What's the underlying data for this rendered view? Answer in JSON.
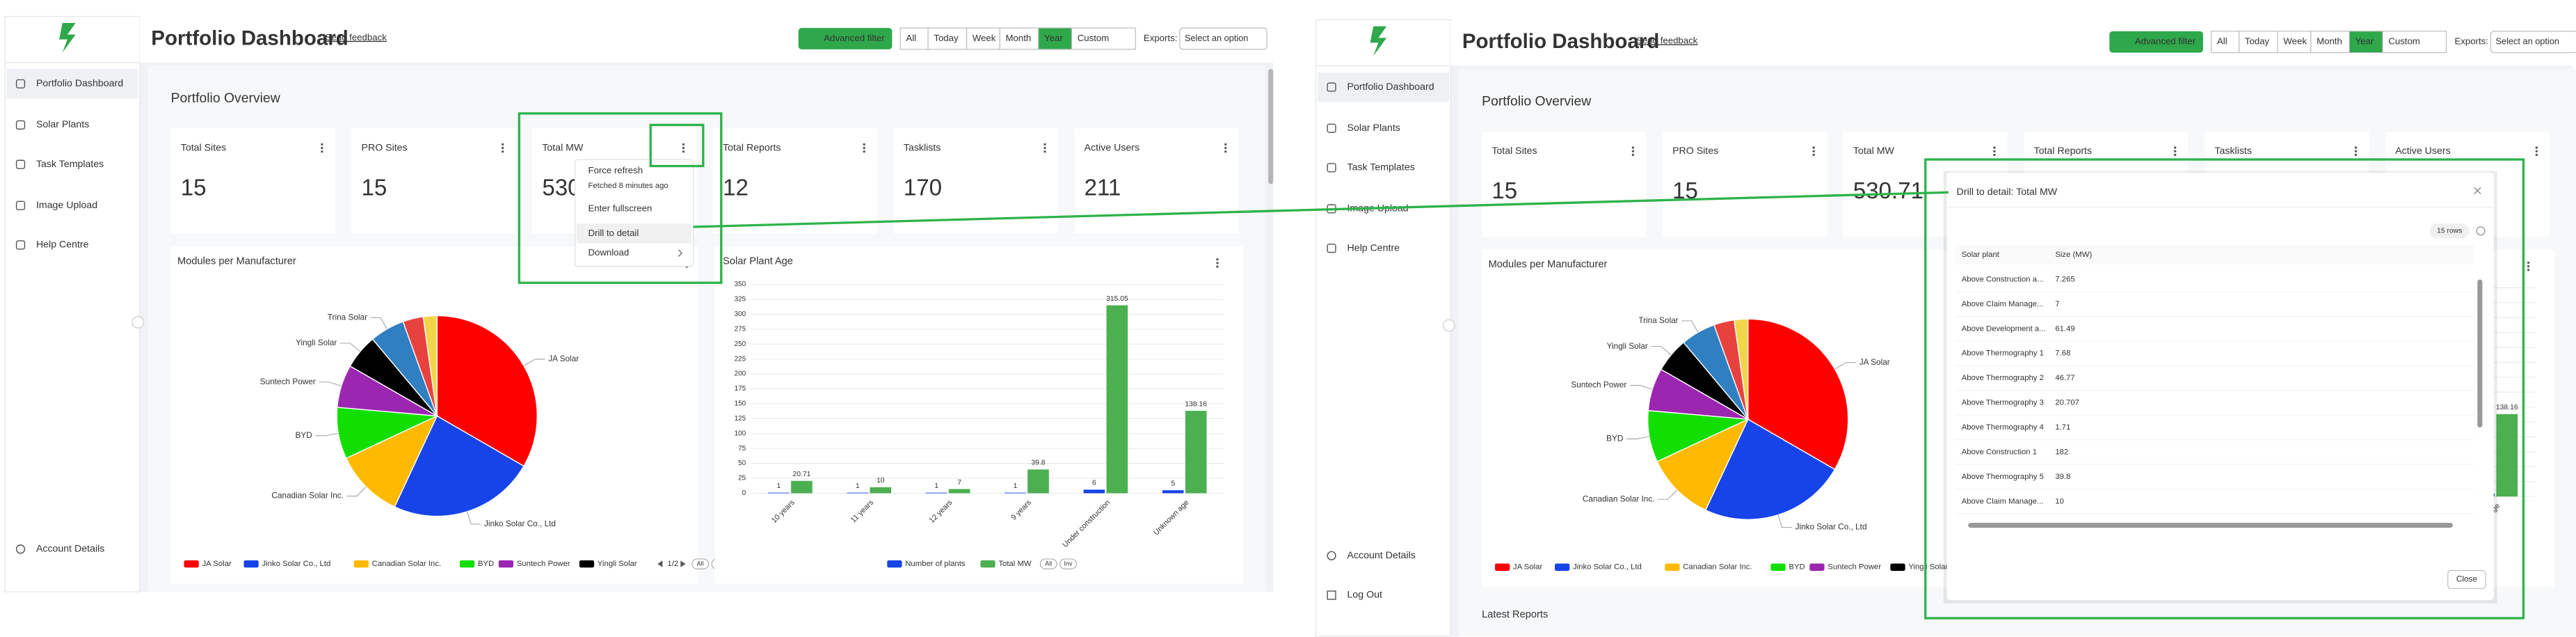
{
  "sidebar": {
    "items": [
      "Portfolio Dashboard",
      "Solar Plants",
      "Task Templates",
      "Image Upload",
      "Help Centre"
    ],
    "account": "Account Details",
    "logout": "Log Out"
  },
  "header": {
    "title": "Portfolio Dashboard",
    "feedback": "Send feedback",
    "advanced_filter": "Advanced filter",
    "periods": [
      "All",
      "Today",
      "Week",
      "Month",
      "Year",
      "Custom"
    ],
    "active_period": "Year",
    "exports_label": "Exports:",
    "exports_select": "Select an option"
  },
  "overview_title": "Portfolio Overview",
  "kpis": [
    {
      "label": "Total Sites",
      "value": 15
    },
    {
      "label": "PRO Sites",
      "value": 15
    },
    {
      "label": "Total MW",
      "value": 530.71
    },
    {
      "label": "Total Reports",
      "value": 12
    },
    {
      "label": "Tasklists",
      "value": 170
    },
    {
      "label": "Active Users",
      "value": 211
    }
  ],
  "kpi_menu": {
    "items": [
      "Force refresh",
      "Enter fullscreen",
      "Drill to detail",
      "Download"
    ],
    "fetched": "Fetched 8 minutes ago"
  },
  "chart_data": [
    {
      "type": "pie",
      "title": "Modules per Manufacturer",
      "categories": [
        "JA Solar",
        "Jinko Solar Co., Ltd",
        "Canadian Solar Inc.",
        "BYD",
        "Suntech Power",
        "Yingli Solar",
        "Trina Solar",
        null,
        null
      ],
      "values": [
        33.3,
        23.6,
        11.1,
        8.3,
        6.9,
        5.6,
        5.6,
        3.3,
        2.2
      ],
      "colors": [
        "#ff0000",
        "#1744e8",
        "#ffba00",
        "#12df00",
        "#9b27b0",
        "#000000",
        "#2f7fc1",
        "#e8423f",
        "#f3d54a"
      ],
      "legend_count": 6,
      "legend_page": "1/2",
      "legend_buttons": [
        "All",
        "Inv"
      ]
    },
    {
      "type": "bar",
      "title": "Solar Plant Age",
      "categories": [
        "10 years",
        "11 years",
        "12 years",
        "9 years",
        "Under construction",
        "Unknown age"
      ],
      "series": [
        {
          "name": "Number of plants",
          "color": "#1744e8",
          "values": [
            1,
            1,
            1,
            1,
            6,
            5
          ]
        },
        {
          "name": "Total MW",
          "color": "#4caf50",
          "values": [
            20.71,
            10,
            7,
            39.8,
            315.05,
            138.16
          ]
        }
      ],
      "ylim": [
        0,
        350
      ],
      "yticks": [
        0,
        25,
        50,
        75,
        100,
        125,
        150,
        175,
        200,
        225,
        250,
        275,
        300,
        325,
        350
      ],
      "grid": true,
      "legend_buttons": [
        "All",
        "Inv"
      ]
    }
  ],
  "drill_modal": {
    "title": "Drill to detail: Total MW",
    "row_count": "15 rows",
    "columns": [
      "Solar plant",
      "Size (MW)"
    ],
    "rows": [
      [
        "Above Construction a...",
        7.265
      ],
      [
        "Above Claim Manage...",
        7
      ],
      [
        "Above Development a...",
        61.49
      ],
      [
        "Above Thermography 1",
        7.68
      ],
      [
        "Above Thermography 2",
        46.77
      ],
      [
        "Above Thermography 3",
        20.707
      ],
      [
        "Above Thermography 4",
        1.71
      ],
      [
        "Above Construction 1",
        182
      ],
      [
        "Above Thermography 5",
        39.8
      ],
      [
        "Above Claim Manage...",
        10
      ]
    ],
    "close": "Close"
  },
  "latest_reports": "Latest Reports"
}
